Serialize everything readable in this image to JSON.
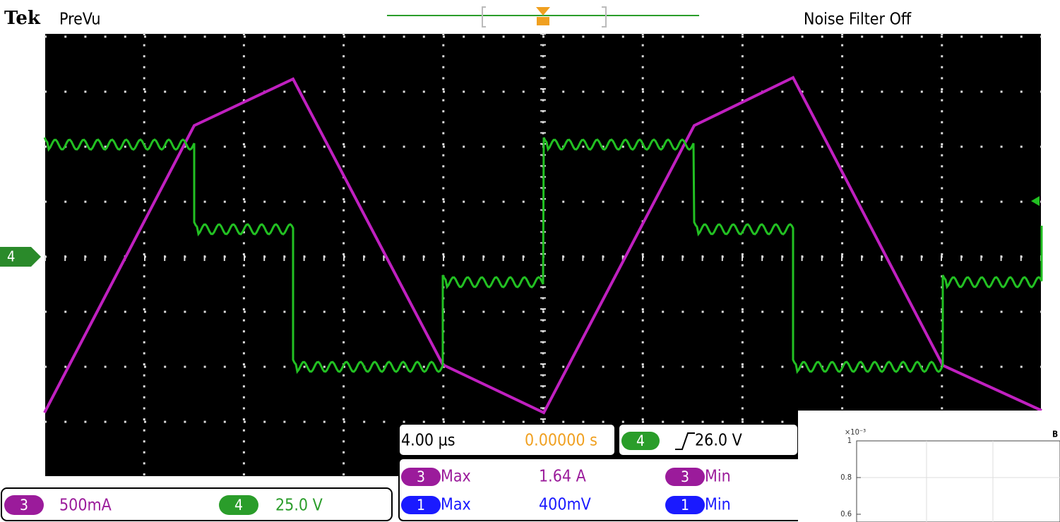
{
  "header": {
    "brand": "Tek",
    "mode": "PreVu",
    "noise_filter": "Noise Filter Off"
  },
  "ground_marker": "4",
  "timebase": {
    "scale": "4.00 µs",
    "position": "0.00000 s"
  },
  "trigger": {
    "channel": "4",
    "level": "26.0 V"
  },
  "measurements": [
    {
      "channel": "3",
      "label": "Max",
      "value": "1.64 A"
    },
    {
      "channel": "3",
      "label": "Min"
    },
    {
      "channel": "1",
      "label": "Max",
      "value": "400mV"
    },
    {
      "channel": "1",
      "label": "Min"
    }
  ],
  "channels": [
    {
      "id": "3",
      "scale": "500mA"
    },
    {
      "id": "4",
      "scale": "25.0 V"
    }
  ],
  "inset": {
    "exponent": "×10⁻³",
    "yticks": [
      "1",
      "0.8",
      "0.6"
    ],
    "label": "B"
  }
}
